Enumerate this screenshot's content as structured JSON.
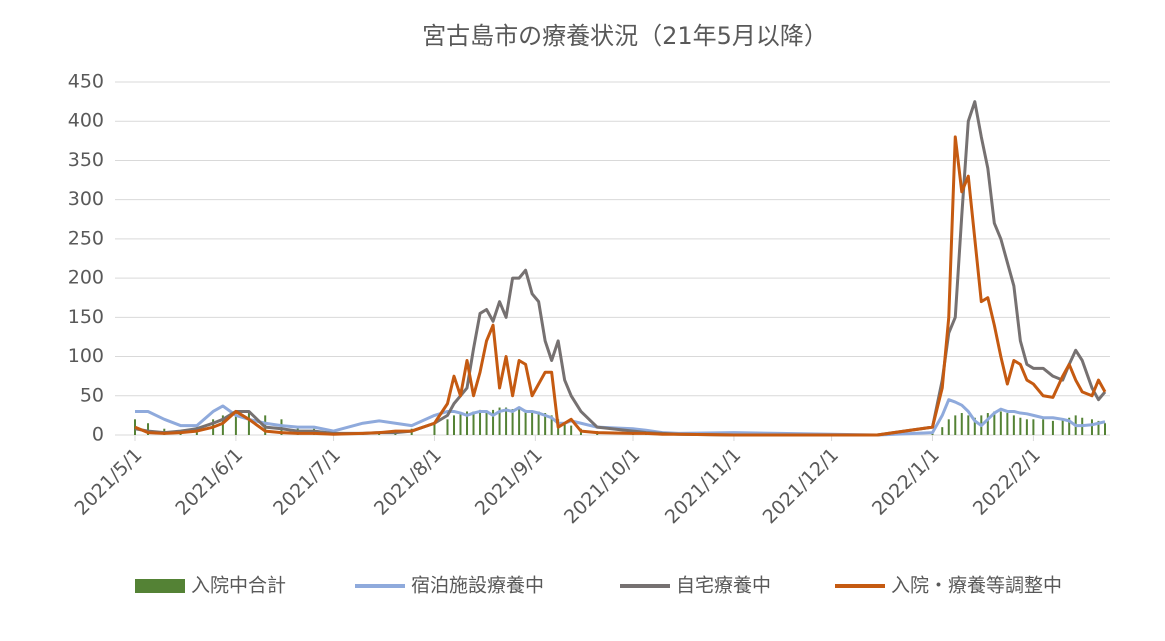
{
  "chart_data": {
    "type": "line",
    "title": "宮古島市の療養状況（21年5月以降）",
    "x": [
      "2021/5/1",
      "2021/5/5",
      "2021/5/10",
      "2021/5/15",
      "2021/5/20",
      "2021/5/25",
      "2021/5/28",
      "2021/6/1",
      "2021/6/5",
      "2021/6/10",
      "2021/6/15",
      "2021/6/20",
      "2021/6/25",
      "2021/7/1",
      "2021/7/10",
      "2021/7/15",
      "2021/7/20",
      "2021/7/25",
      "2021/8/1",
      "2021/8/5",
      "2021/8/7",
      "2021/8/9",
      "2021/8/11",
      "2021/8/13",
      "2021/8/15",
      "2021/8/17",
      "2021/8/19",
      "2021/8/21",
      "2021/8/23",
      "2021/8/25",
      "2021/8/27",
      "2021/8/29",
      "2021/8/31",
      "2021/9/2",
      "2021/9/4",
      "2021/9/6",
      "2021/9/8",
      "2021/9/10",
      "2021/9/12",
      "2021/9/15",
      "2021/9/20",
      "2021/10/1",
      "2021/10/5",
      "2021/10/10",
      "2021/10/15",
      "2021/11/1",
      "2021/11/15",
      "2021/12/1",
      "2021/12/15",
      "2022/1/1",
      "2022/1/4",
      "2022/1/6",
      "2022/1/8",
      "2022/1/10",
      "2022/1/12",
      "2022/1/14",
      "2022/1/16",
      "2022/1/18",
      "2022/1/20",
      "2022/1/22",
      "2022/1/24",
      "2022/1/26",
      "2022/1/28",
      "2022/1/30",
      "2022/2/1",
      "2022/2/4",
      "2022/2/7",
      "2022/2/10",
      "2022/2/12",
      "2022/2/14",
      "2022/2/16",
      "2022/2/19",
      "2022/2/21",
      "2022/2/23"
    ],
    "series": [
      {
        "name": "入院中合計",
        "kind": "bar",
        "color": "#548235",
        "values": [
          20,
          15,
          8,
          5,
          10,
          20,
          25,
          30,
          30,
          25,
          20,
          10,
          8,
          5,
          3,
          3,
          5,
          8,
          15,
          20,
          25,
          28,
          30,
          30,
          32,
          30,
          32,
          35,
          35,
          33,
          35,
          32,
          30,
          30,
          28,
          25,
          20,
          15,
          12,
          8,
          5,
          5,
          3,
          2,
          1,
          0,
          0,
          0,
          0,
          2,
          10,
          20,
          25,
          28,
          25,
          22,
          25,
          28,
          30,
          30,
          28,
          25,
          22,
          20,
          20,
          20,
          18,
          20,
          22,
          25,
          22,
          20,
          18,
          15
        ]
      },
      {
        "name": "宿泊施設療養中",
        "kind": "line",
        "color": "#8faadc",
        "values": [
          30,
          30,
          20,
          12,
          12,
          30,
          37,
          25,
          20,
          15,
          12,
          10,
          10,
          5,
          15,
          18,
          15,
          12,
          25,
          30,
          30,
          28,
          25,
          28,
          30,
          30,
          25,
          30,
          32,
          30,
          35,
          30,
          30,
          28,
          25,
          22,
          15,
          15,
          18,
          15,
          10,
          8,
          6,
          3,
          2,
          3,
          2,
          1,
          0,
          3,
          25,
          45,
          42,
          38,
          30,
          18,
          12,
          20,
          28,
          33,
          30,
          30,
          28,
          27,
          25,
          22,
          22,
          20,
          18,
          12,
          12,
          13,
          15,
          17
        ]
      },
      {
        "name": "自宅療養中",
        "kind": "line",
        "color": "#767171",
        "values": [
          8,
          5,
          3,
          5,
          8,
          15,
          20,
          30,
          30,
          10,
          8,
          5,
          5,
          2,
          2,
          3,
          3,
          5,
          15,
          25,
          40,
          50,
          60,
          110,
          155,
          160,
          145,
          170,
          150,
          200,
          200,
          210,
          180,
          170,
          120,
          95,
          120,
          70,
          50,
          30,
          10,
          5,
          3,
          2,
          1,
          0,
          0,
          0,
          0,
          10,
          70,
          130,
          150,
          280,
          400,
          425,
          380,
          340,
          270,
          250,
          220,
          190,
          120,
          90,
          85,
          85,
          75,
          70,
          90,
          108,
          95,
          60,
          45,
          55
        ]
      },
      {
        "name": "入院・療養等調整中",
        "kind": "line",
        "color": "#c55a11",
        "values": [
          10,
          3,
          2,
          3,
          5,
          10,
          15,
          30,
          20,
          5,
          3,
          2,
          2,
          1,
          2,
          3,
          5,
          5,
          15,
          40,
          75,
          50,
          95,
          50,
          80,
          120,
          140,
          60,
          100,
          50,
          95,
          90,
          50,
          65,
          80,
          80,
          10,
          15,
          20,
          5,
          3,
          2,
          2,
          1,
          1,
          0,
          0,
          0,
          0,
          10,
          60,
          150,
          380,
          310,
          330,
          250,
          170,
          175,
          140,
          100,
          65,
          95,
          90,
          70,
          65,
          50,
          48,
          75,
          90,
          70,
          55,
          50,
          70,
          55
        ]
      }
    ],
    "xticks": [
      "2021/5/1",
      "2021/6/1",
      "2021/7/1",
      "2021/8/1",
      "2021/9/1",
      "2021/10/1",
      "2021/11/1",
      "2021/12/1",
      "2022/1/1",
      "2022/2/1"
    ],
    "ylim": [
      0,
      450
    ],
    "yticks": [
      0,
      50,
      100,
      150,
      200,
      250,
      300,
      350,
      400,
      450
    ],
    "grid": true
  }
}
